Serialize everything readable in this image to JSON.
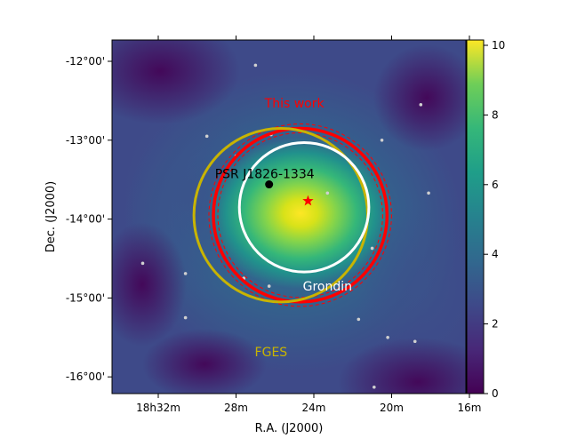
{
  "chart_data": {
    "type": "heatmap",
    "title": "",
    "xlabel": "R.A. (J2000)",
    "ylabel": "Dec. (J2000)",
    "x_ticks": [
      "18h32m",
      "28m",
      "24m",
      "20m",
      "16m"
    ],
    "y_ticks": [
      "-12°00'",
      "-13°00'",
      "-14°00'",
      "-15°00'",
      "-16°00'"
    ],
    "colorbar": {
      "min": 0,
      "max": 10,
      "ticks": [
        "0",
        "2",
        "4",
        "6",
        "8",
        "10"
      ],
      "colormap": "viridis"
    },
    "map": {
      "peak_value": 9.8,
      "peak_ra_min": 24.4,
      "peak_dec_deg": -13.9
    },
    "circles": [
      {
        "name": "This work",
        "center_ra_min": 24.7,
        "center_dec_deg": -13.95,
        "radius_deg": 1.1,
        "color": "#ff0000",
        "label_ra_min": 25.0,
        "label_dec_deg": -12.53
      },
      {
        "name": "FGES",
        "center_ra_min": 25.7,
        "center_dec_deg": -13.95,
        "radius_deg": 1.1,
        "color": "#c8b400",
        "label_ra_min": 26.2,
        "label_dec_deg": -15.68
      },
      {
        "name": "Grondin",
        "center_ra_min": 24.5,
        "center_dec_deg": -13.85,
        "radius_deg": 0.82,
        "color": "#ffffff",
        "label_ra_min": 23.3,
        "label_dec_deg": -14.85
      }
    ],
    "markers": [
      {
        "name": "PSR J1826-1334",
        "ra_min": 26.3,
        "dec_deg": -13.56,
        "symbol": "circle",
        "color": "#000000"
      },
      {
        "name": "",
        "ra_min": 24.3,
        "dec_deg": -13.77,
        "symbol": "star",
        "color": "#ff0000"
      }
    ],
    "sources": [
      [
        27.0,
        -12.05
      ],
      [
        15.8,
        -12.15
      ],
      [
        18.5,
        -12.55
      ],
      [
        29.5,
        -12.95
      ],
      [
        26.2,
        -12.93
      ],
      [
        20.5,
        -13.0
      ],
      [
        28.0,
        -13.2
      ],
      [
        18.1,
        -13.67
      ],
      [
        23.3,
        -13.67
      ],
      [
        21.0,
        -14.37
      ],
      [
        32.8,
        -14.56
      ],
      [
        30.6,
        -14.69
      ],
      [
        27.6,
        -14.75
      ],
      [
        26.3,
        -14.85
      ],
      [
        30.6,
        -15.25
      ],
      [
        21.7,
        -15.27
      ],
      [
        20.2,
        -15.5
      ],
      [
        18.8,
        -15.55
      ],
      [
        20.9,
        -16.13
      ],
      [
        15.9,
        -14.27
      ]
    ]
  }
}
